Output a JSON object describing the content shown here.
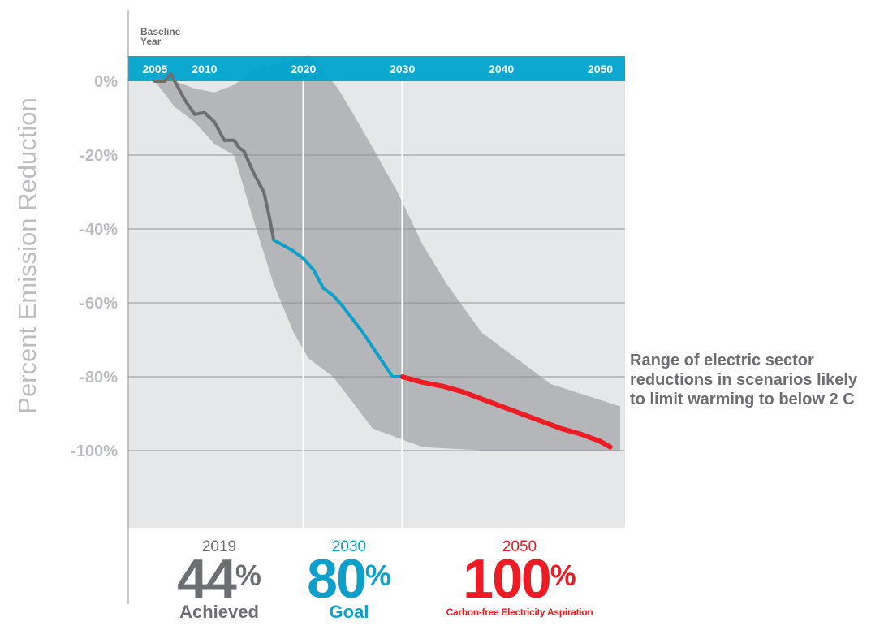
{
  "colors": {
    "achieved": "#6d6e71",
    "goal": "#0fa0c9",
    "aspiration": "#ed1c24",
    "range_band": "#b5b6b9",
    "plot_bg": "#e6e7e8",
    "axis_bar": "#00a3cc"
  },
  "chart_data": {
    "type": "line",
    "ylabel": "Percent Emission Reduction",
    "baseline_label": "Baseline Year",
    "x_ticks": [
      2005,
      2010,
      2020,
      2030,
      2040,
      2050
    ],
    "x_tick_labels": [
      "2005",
      "2010",
      "2020",
      "2030",
      "2040",
      "2050"
    ],
    "y_ticks": [
      0,
      -20,
      -40,
      -60,
      -80,
      -100
    ],
    "y_tick_labels": [
      "0%",
      "-20%",
      "-40%",
      "-60%",
      "-80%",
      "-100%"
    ],
    "xlim": [
      2005,
      2052
    ],
    "ylim": [
      -120,
      0
    ],
    "grid": true,
    "series": [
      {
        "name": "Achieved",
        "color_key": "achieved",
        "x": [
          2005,
          2006,
          2006.6,
          2008,
          2009,
          2010,
          2011,
          2012,
          2013,
          2013.5,
          2014,
          2015,
          2016,
          2016.5,
          2017
        ],
        "y": [
          0,
          0,
          2,
          -5,
          -9,
          -8.5,
          -11,
          -16,
          -16,
          -18,
          -19,
          -25,
          -30,
          -36,
          -43
        ]
      },
      {
        "name": "Goal",
        "color_key": "goal",
        "x": [
          2017,
          2019,
          2020,
          2021,
          2022,
          2023,
          2024,
          2025,
          2026,
          2027,
          2028,
          2029,
          2030
        ],
        "y": [
          -43,
          -46,
          -48,
          -51,
          -56,
          -58,
          -61,
          -64.5,
          -68,
          -72,
          -76,
          -80,
          -80
        ]
      },
      {
        "name": "Carbon-free Electricity Aspiration",
        "color_key": "aspiration",
        "x": [
          2030,
          2032,
          2034,
          2036,
          2038,
          2040,
          2042,
          2044,
          2046,
          2048,
          2050,
          2051
        ],
        "y": [
          -80,
          -81.5,
          -82.5,
          -84,
          -86,
          -88,
          -90,
          -92,
          -94,
          -95.5,
          -97.5,
          -99
        ]
      }
    ],
    "range_band": {
      "x": [
        2005,
        2007,
        2009,
        2011,
        2013,
        2015,
        2017,
        2019,
        2020.5,
        2022,
        2023.5,
        2025.5,
        2027,
        2029.5,
        2032,
        2034.5,
        2038,
        2042,
        2045,
        2052,
        2052,
        2046,
        2042,
        2039,
        2035,
        2032,
        2029.5,
        2027,
        2023,
        2020.5,
        2019,
        2017,
        2015,
        2013,
        2011,
        2009,
        2007,
        2005
      ],
      "y": [
        0,
        0,
        -2,
        -3,
        -1,
        3,
        4.5,
        6,
        7,
        3,
        -2,
        -11,
        -18,
        -30,
        -44,
        -55,
        -68,
        -76,
        -82,
        -88,
        -100,
        -100,
        -100,
        -100,
        -99.5,
        -99,
        -96.5,
        -94,
        -80,
        -75,
        -68,
        -55,
        -38,
        -20,
        -17,
        -11,
        -7,
        0
      ]
    },
    "annotation": "Range of electric sector reductions in scenarios likely to limit warming to below 2 C"
  },
  "stats": [
    {
      "year": "2019",
      "value": "44",
      "unit": "%",
      "caption": "Achieved",
      "color_key": "achieved"
    },
    {
      "year": "2030",
      "value": "80",
      "unit": "%",
      "caption": "Goal",
      "color_key": "goal"
    },
    {
      "year": "2050",
      "value": "100",
      "unit": "%",
      "caption": "Carbon-free Electricity Aspiration",
      "color_key": "aspiration"
    }
  ]
}
